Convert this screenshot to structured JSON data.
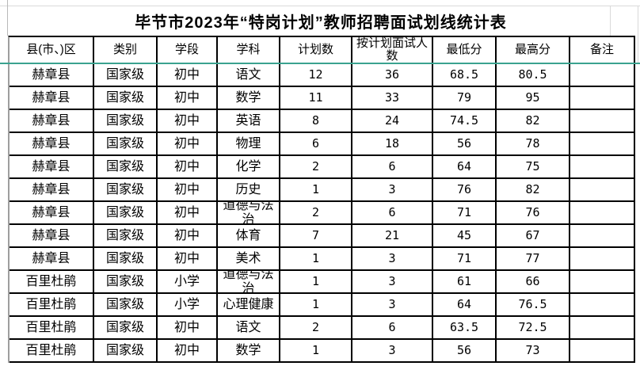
{
  "title": "毕节市2023年“特岗计划”教师招聘面试划线统计表",
  "table": {
    "headers": [
      "县(市、)区",
      "类别",
      "学段",
      "学科",
      "计划数",
      "按计划面试人数",
      "最低分",
      "最高分",
      "备注"
    ],
    "rows": [
      [
        "赫章县",
        "国家级",
        "初中",
        "语文",
        "12",
        "36",
        "68.5",
        "80.5",
        ""
      ],
      [
        "赫章县",
        "国家级",
        "初中",
        "数学",
        "11",
        "33",
        "79",
        "95",
        ""
      ],
      [
        "赫章县",
        "国家级",
        "初中",
        "英语",
        "8",
        "24",
        "74.5",
        "82",
        ""
      ],
      [
        "赫章县",
        "国家级",
        "初中",
        "物理",
        "6",
        "18",
        "56",
        "78",
        ""
      ],
      [
        "赫章县",
        "国家级",
        "初中",
        "化学",
        "2",
        "6",
        "64",
        "75",
        ""
      ],
      [
        "赫章县",
        "国家级",
        "初中",
        "历史",
        "1",
        "3",
        "76",
        "82",
        ""
      ],
      [
        "赫章县",
        "国家级",
        "初中",
        "道德与法治",
        "2",
        "6",
        "71",
        "76",
        ""
      ],
      [
        "赫章县",
        "国家级",
        "初中",
        "体育",
        "7",
        "21",
        "45",
        "67",
        ""
      ],
      [
        "赫章县",
        "国家级",
        "初中",
        "美术",
        "1",
        "3",
        "71",
        "77",
        ""
      ],
      [
        "百里杜鹃",
        "国家级",
        "小学",
        "道德与法治",
        "1",
        "3",
        "61",
        "66",
        ""
      ],
      [
        "百里杜鹃",
        "国家级",
        "小学",
        "心理健康",
        "1",
        "3",
        "64",
        "76.5",
        ""
      ],
      [
        "百里杜鹃",
        "国家级",
        "初中",
        "语文",
        "2",
        "6",
        "63.5",
        "72.5",
        ""
      ],
      [
        "百里杜鹃",
        "国家级",
        "初中",
        "数学",
        "1",
        "3",
        "56",
        "73",
        ""
      ]
    ]
  },
  "colors": {
    "header_divider_teal": "#3aa28f",
    "table_border": "#000000",
    "margin_gridline": "#d9d9d9",
    "outer_left_border": "#9e9e9e"
  }
}
